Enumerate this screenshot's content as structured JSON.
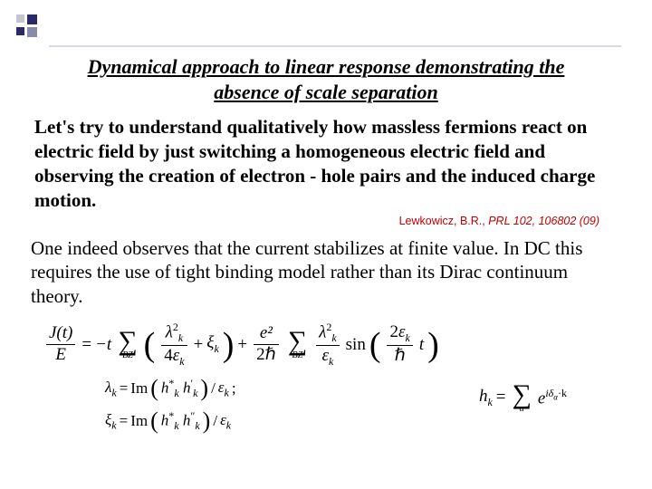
{
  "decor": {
    "accent_color": "#2a2a6a",
    "cite_color": "#c00000",
    "background": "#ffffff"
  },
  "title": "Dynamical approach to linear response demonstrating the absence of scale separation",
  "body1": "Let's try to understand qualitatively how massless fermions react on electric field by just switching a homogeneous electric field and observing the creation of electron - hole pairs and the induced charge motion.",
  "citation": {
    "authors": "Lewkowicz, B.R.,",
    "journal": "PRL 102, 106802 (09)"
  },
  "body2": "One indeed observes that the current stabilizes at finite value. In DC this requires the use of tight binding model rather than its Dirac continuum theory.",
  "equations": {
    "main": {
      "lhs_num": "J(t)",
      "lhs_den": "E",
      "eq": "=",
      "minus_t": "−t",
      "term1_num": "λ",
      "term1_num_sup": "2",
      "term1_num_sub": "k",
      "term1_den_coef": "4",
      "term1_den_sym": "ε",
      "term1_den_sub": "k",
      "plus1": "+",
      "term1b_sym": "ξ",
      "term1b_sub": "k",
      "plus2": "+",
      "term2_frac_num": "e²",
      "term2_frac_den": "2ℏ",
      "term2_num": "λ",
      "term2_num_sup": "2",
      "term2_num_sub": "k",
      "term2_den": "ε",
      "term2_den_sub": "k",
      "sin": "sin",
      "sin_arg_num_coef": "2",
      "sin_arg_num_sym": "ε",
      "sin_arg_num_sub": "k",
      "sin_arg_den": "ℏ",
      "sin_arg_t": "t",
      "bz": "BZ"
    },
    "lambda": {
      "lhs_sym": "λ",
      "lhs_sub": "k",
      "eq": "=",
      "im": "Im",
      "h1": "h",
      "h1_sup": "*",
      "h1_sub": "k",
      "h2": "h",
      "h2_sup": "′",
      "h2_sub": "k",
      "div_sym": "ε",
      "div_sub": "k",
      "semi": ";"
    },
    "xi": {
      "lhs_sym": "ξ",
      "lhs_sub": "k",
      "eq": "=",
      "im": "Im",
      "h1": "h",
      "h1_sup": "*",
      "h1_sub": "k",
      "h2": "h",
      "h2_sup": "″",
      "h2_sub": "k",
      "div_sym": "ε",
      "div_sub": "k"
    },
    "hk": {
      "lhs_sym": "h",
      "lhs_sub": "k",
      "eq": "=",
      "exp_pre": "e",
      "exp_sup": "iδ",
      "exp_sup_sub": "α",
      "exp_dot": "·k",
      "alpha": "α"
    }
  }
}
